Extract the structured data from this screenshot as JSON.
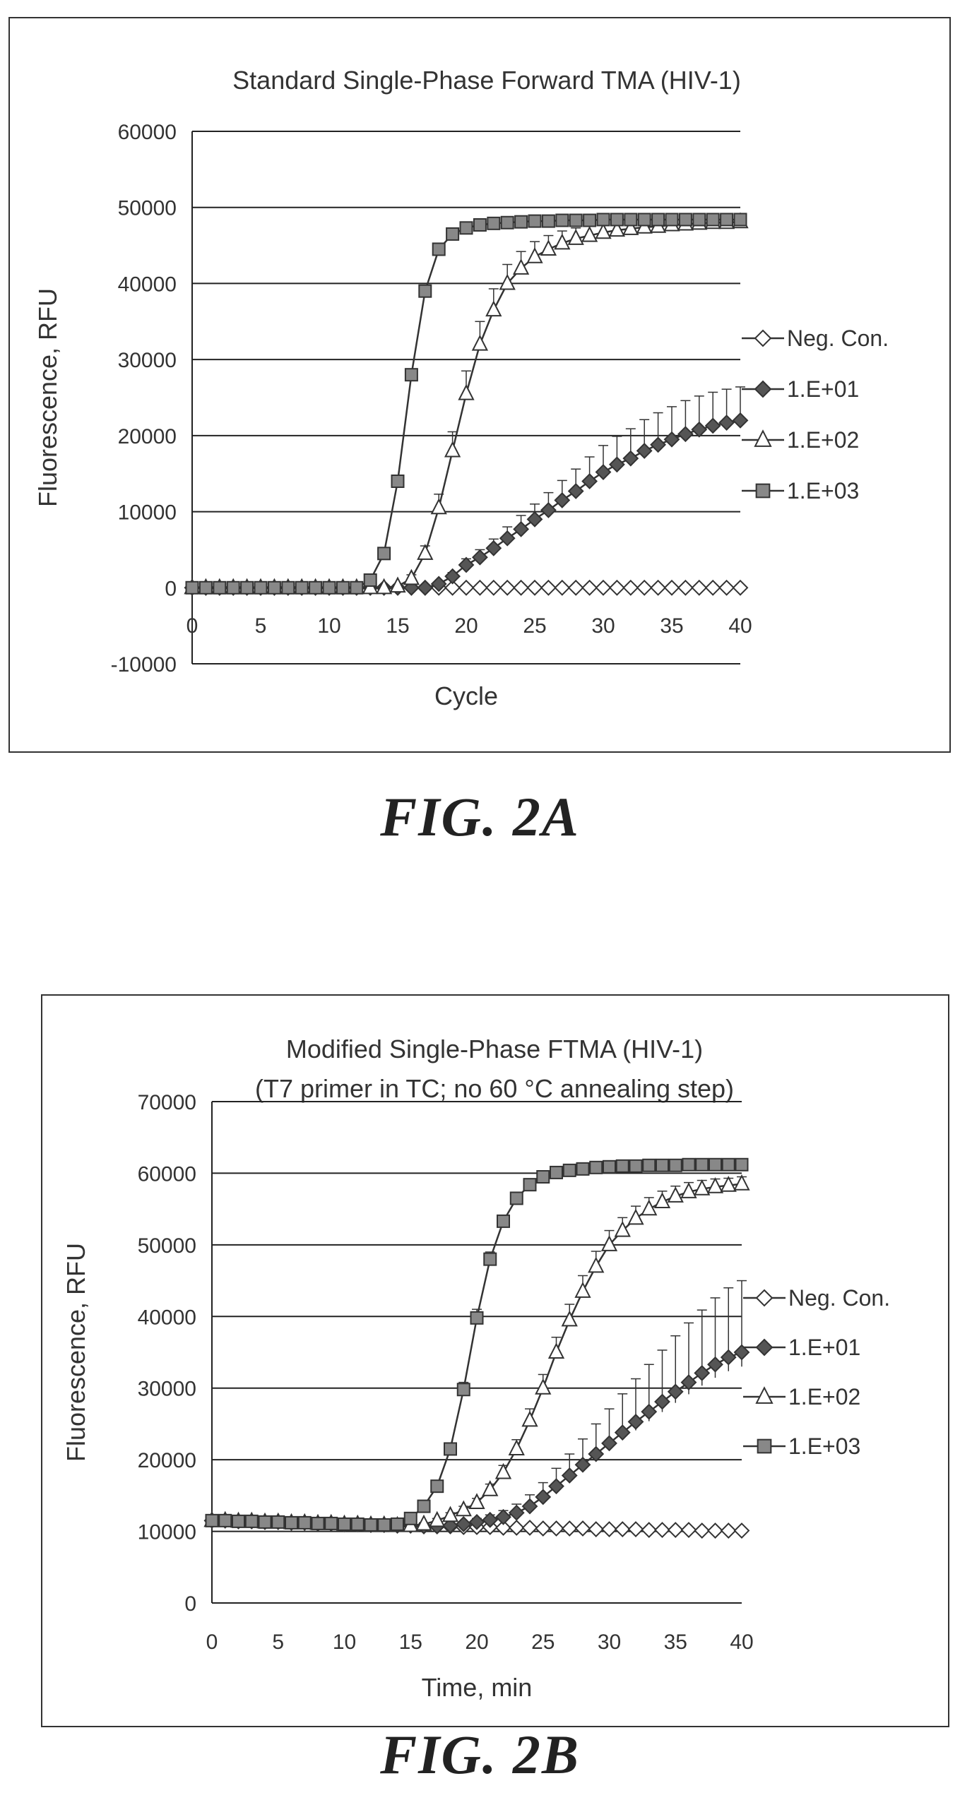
{
  "chart_data": [
    {
      "type": "line",
      "title": "Standard Single-Phase Forward TMA (HIV-1)",
      "subtitle": "",
      "xlabel": "Cycle",
      "ylabel": "Fluorescence, RFU",
      "xlim": [
        0,
        40
      ],
      "ylim": [
        -10000,
        60000
      ],
      "xticks": [
        0,
        5,
        10,
        15,
        20,
        25,
        30,
        35,
        40
      ],
      "yticks": [
        -10000,
        0,
        10000,
        20000,
        30000,
        40000,
        50000,
        60000
      ],
      "xtick_labels": [
        "0",
        "5",
        "10",
        "15",
        "20",
        "25",
        "30",
        "35",
        "40"
      ],
      "ytick_labels": [
        "-10000",
        "0",
        "10000",
        "20000",
        "30000",
        "40000",
        "50000",
        "60000"
      ],
      "grid": "horizontal",
      "legend": "right",
      "x": [
        0,
        1,
        2,
        3,
        4,
        5,
        6,
        7,
        8,
        9,
        10,
        11,
        12,
        13,
        14,
        15,
        16,
        17,
        18,
        19,
        20,
        21,
        22,
        23,
        24,
        25,
        26,
        27,
        28,
        29,
        30,
        31,
        32,
        33,
        34,
        35,
        36,
        37,
        38,
        39,
        40
      ],
      "series": [
        {
          "name": "Neg. Con.",
          "marker": "diamond-open",
          "values": [
            0,
            0,
            0,
            0,
            0,
            0,
            0,
            0,
            0,
            0,
            0,
            0,
            0,
            0,
            0,
            0,
            0,
            0,
            0,
            0,
            0,
            0,
            0,
            0,
            0,
            0,
            0,
            0,
            0,
            0,
            0,
            0,
            0,
            0,
            0,
            0,
            0,
            0,
            0,
            0,
            0
          ],
          "error": []
        },
        {
          "name": "1.E+01",
          "marker": "diamond-filled",
          "values": [
            0,
            0,
            0,
            0,
            0,
            0,
            0,
            0,
            0,
            0,
            0,
            0,
            0,
            0,
            0,
            0,
            0,
            0,
            500,
            1500,
            3000,
            4000,
            5200,
            6500,
            7700,
            9000,
            10200,
            11500,
            12700,
            14000,
            15200,
            16200,
            17000,
            18000,
            18800,
            19500,
            20200,
            20800,
            21300,
            21700,
            22000
          ],
          "error": [
            0,
            0,
            0,
            0,
            0,
            0,
            0,
            0,
            0,
            0,
            0,
            0,
            0,
            0,
            0,
            0,
            0,
            0,
            300,
            500,
            800,
            1000,
            1200,
            1500,
            1800,
            2000,
            2300,
            2600,
            2900,
            3200,
            3500,
            3700,
            3900,
            4100,
            4200,
            4300,
            4400,
            4400,
            4400,
            4400,
            4400
          ]
        },
        {
          "name": "1.E+02",
          "marker": "triangle-open",
          "values": [
            0,
            0,
            0,
            0,
            0,
            0,
            0,
            0,
            0,
            0,
            0,
            0,
            0,
            0,
            0,
            200,
            1200,
            4500,
            10500,
            18000,
            25500,
            32000,
            36500,
            40000,
            42000,
            43500,
            44500,
            45300,
            45900,
            46300,
            46700,
            47000,
            47200,
            47400,
            47500,
            47700,
            47800,
            47900,
            48000,
            48000,
            48100
          ],
          "error": [
            0,
            0,
            0,
            0,
            0,
            0,
            0,
            0,
            0,
            0,
            0,
            0,
            0,
            0,
            0,
            200,
            500,
            1000,
            1800,
            2500,
            3000,
            3000,
            2800,
            2500,
            2200,
            2000,
            1800,
            1600,
            1400,
            1300,
            1200,
            1100,
            1000,
            900,
            800,
            800,
            700,
            700,
            600,
            600,
            600
          ]
        },
        {
          "name": "1.E+03",
          "marker": "square-filled",
          "values": [
            0,
            0,
            0,
            0,
            0,
            0,
            0,
            0,
            0,
            0,
            0,
            0,
            0,
            1000,
            4500,
            14000,
            28000,
            39000,
            44500,
            46500,
            47300,
            47700,
            47900,
            48000,
            48100,
            48200,
            48200,
            48300,
            48300,
            48300,
            48400,
            48400,
            48400,
            48400,
            48400,
            48400,
            48400,
            48400,
            48400,
            48400,
            48400
          ],
          "error": []
        }
      ]
    },
    {
      "type": "line",
      "title": "Modified Single-Phase FTMA (HIV-1)",
      "subtitle": "(T7 primer in TC; no 60 °C annealing step)",
      "xlabel": "Time, min",
      "ylabel": "Fluorescence, RFU",
      "xlim": [
        0,
        40
      ],
      "ylim": [
        0,
        70000
      ],
      "xticks": [
        0,
        5,
        10,
        15,
        20,
        25,
        30,
        35,
        40
      ],
      "yticks": [
        0,
        10000,
        20000,
        30000,
        40000,
        50000,
        60000,
        70000
      ],
      "xtick_labels": [
        "0",
        "5",
        "10",
        "15",
        "20",
        "25",
        "30",
        "35",
        "40"
      ],
      "ytick_labels": [
        "0",
        "10000",
        "20000",
        "30000",
        "40000",
        "50000",
        "60000",
        "70000"
      ],
      "grid": "horizontal",
      "legend": "right",
      "x": [
        0,
        1,
        2,
        3,
        4,
        5,
        6,
        7,
        8,
        9,
        10,
        11,
        12,
        13,
        14,
        15,
        16,
        17,
        18,
        19,
        20,
        21,
        22,
        23,
        24,
        25,
        26,
        27,
        28,
        29,
        30,
        31,
        32,
        33,
        34,
        35,
        36,
        37,
        38,
        39,
        40
      ],
      "series": [
        {
          "name": "Neg. Con.",
          "marker": "diamond-open",
          "values": [
            11500,
            11500,
            11400,
            11400,
            11300,
            11300,
            11200,
            11200,
            11100,
            11100,
            11000,
            11000,
            10900,
            10900,
            10800,
            10800,
            10700,
            10700,
            10700,
            10600,
            10600,
            10600,
            10500,
            10500,
            10500,
            10400,
            10400,
            10400,
            10400,
            10300,
            10300,
            10300,
            10300,
            10200,
            10200,
            10200,
            10200,
            10100,
            10100,
            10100,
            10100
          ],
          "error": []
        },
        {
          "name": "1.E+01",
          "marker": "diamond-filled",
          "values": [
            11500,
            11500,
            11400,
            11400,
            11300,
            11300,
            11200,
            11200,
            11100,
            11100,
            11000,
            11000,
            10900,
            10900,
            10800,
            10800,
            10700,
            10700,
            10800,
            11000,
            11300,
            11600,
            12000,
            12600,
            13500,
            14800,
            16300,
            17800,
            19300,
            20800,
            22300,
            23800,
            25300,
            26700,
            28100,
            29500,
            30800,
            32100,
            33300,
            34300,
            35000
          ],
          "error": [
            0,
            0,
            0,
            0,
            0,
            0,
            0,
            0,
            0,
            0,
            0,
            0,
            0,
            0,
            0,
            0,
            0,
            0,
            200,
            300,
            500,
            700,
            900,
            1200,
            1600,
            2000,
            2500,
            3000,
            3600,
            4200,
            4800,
            5400,
            6000,
            6600,
            7200,
            7800,
            8300,
            8800,
            9300,
            9700,
            10000
          ]
        },
        {
          "name": "1.E+02",
          "marker": "triangle-open",
          "values": [
            11500,
            11500,
            11400,
            11400,
            11300,
            11300,
            11200,
            11200,
            11100,
            11100,
            11000,
            11000,
            10900,
            10900,
            10800,
            10800,
            11000,
            11500,
            12200,
            13000,
            14000,
            15800,
            18200,
            21500,
            25500,
            30000,
            35000,
            39500,
            43500,
            47000,
            50000,
            52000,
            53700,
            55000,
            56000,
            56800,
            57400,
            57800,
            58100,
            58300,
            58500
          ],
          "error": [
            0,
            0,
            0,
            0,
            0,
            0,
            0,
            0,
            0,
            0,
            0,
            0,
            0,
            0,
            0,
            0,
            200,
            300,
            400,
            500,
            600,
            800,
            1000,
            1300,
            1600,
            1900,
            2100,
            2200,
            2200,
            2100,
            2000,
            1800,
            1700,
            1600,
            1500,
            1400,
            1300,
            1200,
            1100,
            1000,
            1000
          ]
        },
        {
          "name": "1.E+03",
          "marker": "square-filled",
          "values": [
            11500,
            11500,
            11400,
            11400,
            11300,
            11300,
            11200,
            11200,
            11100,
            11100,
            11000,
            11000,
            10900,
            10900,
            11000,
            11800,
            13500,
            16300,
            21500,
            29800,
            39800,
            48000,
            53300,
            56500,
            58400,
            59500,
            60100,
            60400,
            60600,
            60800,
            60900,
            61000,
            61000,
            61100,
            61100,
            61100,
            61200,
            61200,
            61200,
            61200,
            61200
          ],
          "error": [
            0,
            0,
            0,
            0,
            0,
            0,
            0,
            0,
            0,
            0,
            0,
            0,
            0,
            0,
            0,
            0,
            0,
            500,
            800,
            1000,
            1200,
            1000,
            800,
            600,
            500,
            400,
            300,
            300,
            300,
            300,
            300,
            300,
            300,
            300,
            300,
            300,
            300,
            300,
            300,
            300,
            300
          ]
        }
      ]
    }
  ],
  "captions": {
    "fig_a": "FIG. 2A",
    "fig_b": "FIG. 2B"
  }
}
